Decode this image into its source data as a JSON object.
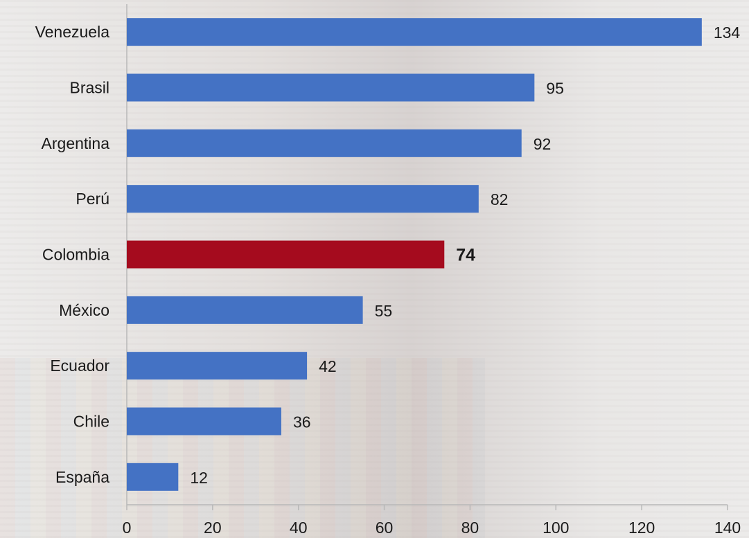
{
  "chart_data": {
    "type": "bar",
    "orientation": "horizontal",
    "categories": [
      "Venezuela",
      "Brasil",
      "Argentina",
      "Perú",
      "Colombia",
      "México",
      "Ecuador",
      "Chile",
      "España"
    ],
    "values": [
      134,
      95,
      92,
      82,
      74,
      55,
      42,
      36,
      12
    ],
    "highlight": "Colombia",
    "colors": {
      "bar": "#4472c4",
      "highlight": "#a50b1e"
    },
    "xlim": [
      0,
      140
    ],
    "xticks": [
      0,
      20,
      40,
      60,
      80,
      100,
      120,
      140
    ],
    "title": "",
    "xlabel": "",
    "ylabel": "",
    "grid": false,
    "legend": "none"
  }
}
